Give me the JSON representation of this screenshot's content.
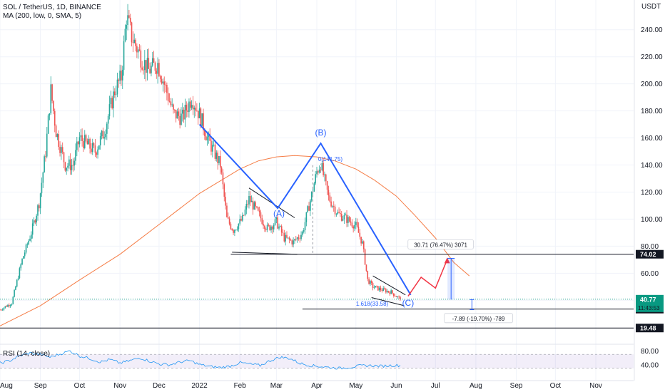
{
  "header": {
    "symbol_line": "SOL / TetherUS, 1D, BINANCE",
    "indicator_line": "MA (200, low, 0, SMA, 5)"
  },
  "rsi": {
    "label": "RSI (14, close)",
    "ticks": [
      "80.00",
      "40.00"
    ],
    "tick_values": [
      80,
      40
    ],
    "upper_band": 70,
    "lower_band": 30,
    "ylim": [
      15,
      95
    ],
    "values": [
      45,
      52,
      66,
      74,
      70,
      62,
      71,
      80,
      65,
      58,
      48,
      55,
      45,
      52,
      60,
      50,
      42,
      40,
      48,
      52,
      40,
      35,
      32,
      36,
      46,
      42,
      38,
      52,
      62,
      58,
      44,
      38,
      35,
      32,
      30,
      33,
      37,
      38,
      36,
      38,
      38
    ]
  },
  "chart_data": {
    "type": "candlestick",
    "title": "SOL / TetherUS, 1D, BINANCE",
    "yunit": "USDT",
    "ylim": [
      8,
      262
    ],
    "ytick_labels": [
      "240.00",
      "220.00",
      "200.00",
      "180.00",
      "160.00",
      "140.00",
      "120.00",
      "100.00",
      "80.00",
      "60.00",
      "40.00"
    ],
    "ytick_values": [
      240,
      220,
      200,
      180,
      160,
      140,
      120,
      100,
      80,
      60,
      40
    ],
    "xtick_labels": [
      "Aug",
      "Sep",
      "Oct",
      "Nov",
      "Dec",
      "2022",
      "Feb",
      "Mar",
      "Apr",
      "May",
      "Jun",
      "Jul",
      "Aug",
      "Sep",
      "Oct",
      "Nov"
    ],
    "xtick_dates": [
      "2021-08-01",
      "2021-09-01",
      "2021-10-01",
      "2021-11-01",
      "2021-12-01",
      "2022-01-01",
      "2022-02-01",
      "2022-03-01",
      "2022-04-01",
      "2022-05-01",
      "2022-06-01",
      "2022-07-01",
      "2022-08-01",
      "2022-09-01",
      "2022-10-01",
      "2022-11-01"
    ],
    "x_range": [
      "2021-08-01",
      "2022-11-30"
    ],
    "price_path": [
      [
        "2021-08-01",
        33
      ],
      [
        "2021-08-10",
        38
      ],
      [
        "2021-08-18",
        70
      ],
      [
        "2021-08-25",
        90
      ],
      [
        "2021-08-31",
        112
      ],
      [
        "2021-09-05",
        150
      ],
      [
        "2021-09-09",
        195
      ],
      [
        "2021-09-13",
        165
      ],
      [
        "2021-09-20",
        140
      ],
      [
        "2021-09-26",
        140
      ],
      [
        "2021-10-01",
        160
      ],
      [
        "2021-10-07",
        155
      ],
      [
        "2021-10-13",
        150
      ],
      [
        "2021-10-20",
        165
      ],
      [
        "2021-10-28",
        195
      ],
      [
        "2021-11-02",
        205
      ],
      [
        "2021-11-06",
        250
      ],
      [
        "2021-11-10",
        235
      ],
      [
        "2021-11-17",
        220
      ],
      [
        "2021-11-23",
        210
      ],
      [
        "2021-11-30",
        215
      ],
      [
        "2021-12-05",
        200
      ],
      [
        "2021-12-12",
        178
      ],
      [
        "2021-12-19",
        175
      ],
      [
        "2021-12-26",
        190
      ],
      [
        "2022-01-02",
        175
      ],
      [
        "2022-01-07",
        160
      ],
      [
        "2022-01-12",
        150
      ],
      [
        "2022-01-17",
        140
      ],
      [
        "2022-01-22",
        100
      ],
      [
        "2022-01-27",
        92
      ],
      [
        "2022-02-03",
        100
      ],
      [
        "2022-02-08",
        115
      ],
      [
        "2022-02-15",
        104
      ],
      [
        "2022-02-22",
        93
      ],
      [
        "2022-03-01",
        98
      ],
      [
        "2022-03-07",
        86
      ],
      [
        "2022-03-14",
        83
      ],
      [
        "2022-03-21",
        90
      ],
      [
        "2022-03-28",
        118
      ],
      [
        "2022-04-01",
        135
      ],
      [
        "2022-04-04",
        141
      ],
      [
        "2022-04-10",
        116
      ],
      [
        "2022-04-17",
        104
      ],
      [
        "2022-04-24",
        100
      ],
      [
        "2022-05-01",
        95
      ],
      [
        "2022-05-06",
        82
      ],
      [
        "2022-05-10",
        55
      ],
      [
        "2022-05-14",
        50
      ],
      [
        "2022-05-20",
        48
      ],
      [
        "2022-05-28",
        46
      ],
      [
        "2022-06-04",
        40.77
      ]
    ],
    "ma_200": [
      [
        "2021-08-01",
        21
      ],
      [
        "2021-09-01",
        36
      ],
      [
        "2021-10-01",
        55
      ],
      [
        "2021-11-01",
        74
      ],
      [
        "2021-12-01",
        96
      ],
      [
        "2022-01-01",
        119
      ],
      [
        "2022-02-01",
        137
      ],
      [
        "2022-02-15",
        143
      ],
      [
        "2022-03-01",
        146
      ],
      [
        "2022-03-15",
        147
      ],
      [
        "2022-04-01",
        146
      ],
      [
        "2022-04-15",
        143
      ],
      [
        "2022-05-01",
        137
      ],
      [
        "2022-05-15",
        129
      ],
      [
        "2022-06-01",
        117
      ],
      [
        "2022-06-15",
        103
      ],
      [
        "2022-07-01",
        86
      ],
      [
        "2022-07-15",
        68
      ],
      [
        "2022-07-27",
        58
      ]
    ],
    "abc_wave": [
      [
        "2022-01-01",
        170
      ],
      [
        "2022-03-02",
        108
      ],
      [
        "2022-04-04",
        156
      ],
      [
        "2022-06-12",
        44
      ]
    ],
    "wave_labels": [
      {
        "text": "(A)",
        "x": "2022-03-03",
        "y": 102
      },
      {
        "text": "(B)",
        "x": "2022-04-04",
        "y": 162
      },
      {
        "text": "(C)",
        "x": "2022-06-10",
        "y": 36
      }
    ],
    "projection": [
      [
        "2022-06-10",
        43
      ],
      [
        "2022-06-20",
        57
      ],
      [
        "2022-07-01",
        49
      ],
      [
        "2022-07-10",
        70
      ]
    ],
    "triangles": [
      {
        "upper": [
          [
            "2022-02-08",
            123
          ],
          [
            "2022-03-15",
            101
          ]
        ],
        "lower": [
          [
            "2022-01-26",
            75.5
          ],
          [
            "2022-03-17",
            74
          ]
        ]
      },
      {
        "upper": [
          [
            "2022-05-14",
            58
          ],
          [
            "2022-06-08",
            44
          ]
        ],
        "lower": [
          [
            "2022-05-13",
            42
          ],
          [
            "2022-06-07",
            36
          ]
        ]
      }
    ],
    "vertical_dashes": [
      {
        "x": "2022-03-29",
        "from": 75,
        "to": 140
      },
      {
        "x": "2022-04-04",
        "from": 134,
        "to": 141
      }
    ],
    "levels": [
      {
        "value": 74.02,
        "label": "74.02",
        "from": "2022-01-25"
      },
      {
        "value": 33.46,
        "label": "33.46",
        "from": "2022-03-21"
      },
      {
        "value": 19.48,
        "label": "19.48",
        "from": "2021-08-01"
      }
    ],
    "current_price": {
      "value": 40.77,
      "label": "40.77",
      "countdown": "11:43:53"
    },
    "annotations": [
      {
        "text": "0(141.75)",
        "x": "2022-04-02",
        "y": 143,
        "kind": "fib"
      },
      {
        "text": "1.618(33.58)",
        "x": "2022-05-01",
        "y": 36,
        "kind": "fib"
      },
      {
        "text": "30.71 (76.47%) 3071",
        "x": "2022-07-05",
        "y": 80,
        "kind": "measure"
      },
      {
        "text": "-7.89 (-19.70%) -789",
        "x": "2022-08-03",
        "y": 25.5,
        "kind": "measure"
      }
    ],
    "measure_up": {
      "x": "2022-07-13",
      "from": 40.5,
      "to": 71
    },
    "measure_down": {
      "x": "2022-07-29",
      "from": 40.5,
      "to": 33
    },
    "colors": {
      "up": "#26a69a",
      "down": "#ef5350",
      "ma": "#f57c45",
      "wave": "#2962ff",
      "projection": "#f23645",
      "level": "#131722",
      "current": "#089981"
    }
  }
}
